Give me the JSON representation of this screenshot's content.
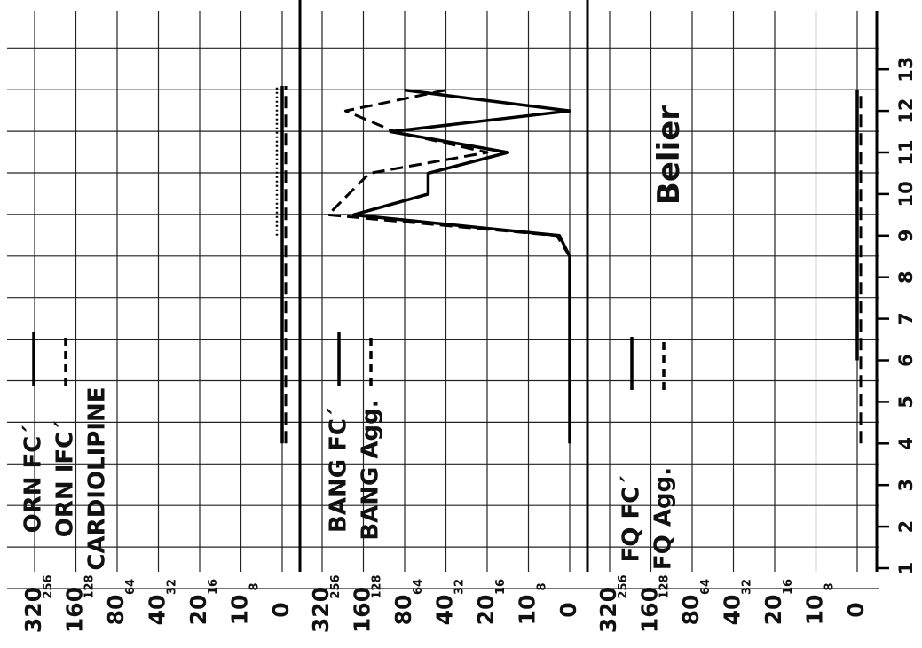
{
  "title": "Belier",
  "chart_data": {
    "type": "line",
    "title": "Belier",
    "x_ticks": [
      1,
      2,
      3,
      4,
      5,
      6,
      7,
      8,
      9,
      10,
      11,
      12,
      13
    ],
    "scale_labels_major": [
      "320",
      "160",
      "80",
      "40",
      "20",
      "10",
      "0"
    ],
    "scale_labels_minor": [
      "256",
      "128",
      "64",
      "32",
      "16",
      "8"
    ],
    "scale_values": [
      0,
      8,
      10,
      16,
      20,
      32,
      40,
      64,
      80,
      128,
      160,
      256,
      320
    ],
    "panels": [
      {
        "id": "orn",
        "legend": [
          "ORN FC´",
          "ORN IFC´",
          "CARDIOLIPINE"
        ],
        "series": [
          {
            "name": "ORN FC´",
            "style": "solid",
            "x": [
              4,
              12.6
            ],
            "y": [
              0,
              0
            ]
          },
          {
            "name": "ORN IFC´",
            "style": "dashed",
            "x": [
              4,
              12.6
            ],
            "y": [
              0,
              0
            ]
          },
          {
            "name": "CARDIOLIPINE",
            "style": "dotted",
            "x": [
              9,
              12.6
            ],
            "y": [
              0,
              0
            ]
          }
        ]
      },
      {
        "id": "bang",
        "legend": [
          "BANG FC´",
          "BANG Agg."
        ],
        "series": [
          {
            "name": "BANG FC´",
            "style": "solid",
            "x": [
              4,
              8.5,
              9,
              9.5,
              10,
              10.5,
              11,
              11.5,
              12,
              12.5
            ],
            "y": [
              0,
              0,
              4,
              200,
              60,
              60,
              16,
              110,
              0,
              80
            ]
          },
          {
            "name": "BANG Agg.",
            "style": "dashed",
            "x": [
              4,
              8.5,
              9,
              9.5,
              10.5,
              11,
              11.5,
              12,
              12.5
            ],
            "y": [
              0,
              0,
              5,
              300,
              150,
              20,
              100,
              240,
              40
            ]
          }
        ]
      },
      {
        "id": "fq",
        "legend": [
          "FQ FC´",
          "FQ Agg."
        ],
        "series": [
          {
            "name": "FQ FC´",
            "style": "solid",
            "x": [
              6,
              12.5
            ],
            "y": [
              0,
              0
            ]
          },
          {
            "name": "FQ Agg.",
            "style": "dashed",
            "x": [
              4,
              12.5
            ],
            "y": [
              0,
              0
            ]
          }
        ]
      }
    ]
  }
}
